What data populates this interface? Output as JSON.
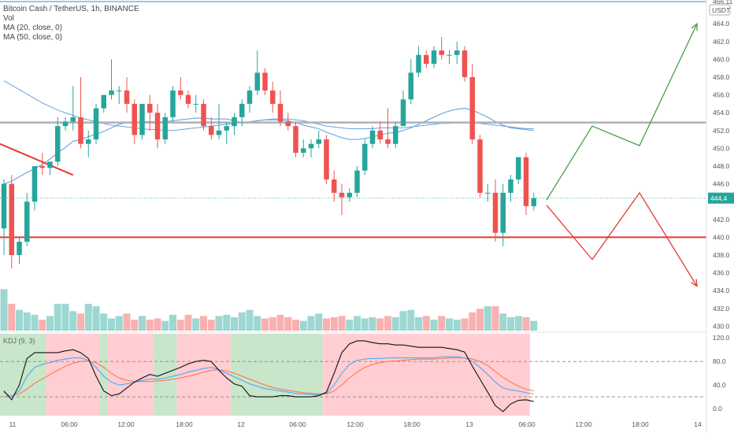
{
  "legend": {
    "symbol": "Bitcoin Cash / TetherUS, 1h, BINANCE",
    "vol": "Vol",
    "ma20": "MA (20, close, 0)",
    "ma50": "MA (50, close, 0)",
    "kdj": "KDJ (9, 3)"
  },
  "price_axis": {
    "currency": "USDT",
    "top_label": "466.11",
    "last_price": "444.4"
  },
  "colors": {
    "up": "#26a69a",
    "down": "#ef5350",
    "ma20": "#5b9bd5",
    "support": "#e53935",
    "resistance": "#b0b0b8",
    "bull_path": "#43a047",
    "bear_path": "#e53935",
    "kdj_bull_bg": "#c8e6c9",
    "kdj_bear_bg": "#ffcdd2"
  },
  "chart_data": {
    "type": "candlestick",
    "title": "Bitcoin Cash / TetherUS, 1h, BINANCE",
    "price_ticks": [
      "464.0",
      "462.0",
      "460.0",
      "458.0",
      "456.0",
      "454.0",
      "452.0",
      "450.0",
      "448.0",
      "446.0",
      "442.0",
      "440.0",
      "438.0",
      "436.0",
      "434.0",
      "432.0",
      "430.0"
    ],
    "kdj_ticks": [
      "120.0",
      "80.0",
      "40.0",
      "0.0"
    ],
    "time_ticks": [
      "11",
      "06:00",
      "12:00",
      "18:00",
      "12",
      "06:00",
      "12:00",
      "18:00",
      "13",
      "06:00",
      "12:00",
      "18:00",
      "14"
    ],
    "ylim": [
      429.5,
      466.5
    ],
    "kdj_ylim": [
      -12,
      127
    ],
    "candles": [
      [
        441.0,
        446.5,
        438.0,
        446.0
      ],
      [
        446.0,
        447.0,
        436.5,
        438.0
      ],
      [
        438.0,
        440.0,
        437.0,
        439.5
      ],
      [
        439.5,
        445.0,
        439.0,
        444.0
      ],
      [
        444.0,
        448.0,
        443.0,
        448.0
      ],
      [
        448.0,
        449.5,
        447.0,
        447.8
      ],
      [
        447.8,
        448.5,
        447.0,
        448.5
      ],
      [
        448.5,
        453.5,
        448.0,
        452.5
      ],
      [
        452.5,
        453.5,
        452.0,
        453.0
      ],
      [
        453.0,
        457.0,
        452.0,
        453.5
      ],
      [
        453.5,
        458.0,
        450.0,
        450.5
      ],
      [
        450.5,
        452.0,
        449.0,
        451.0
      ],
      [
        451.0,
        455.0,
        450.5,
        454.5
      ],
      [
        454.5,
        456.0,
        454.0,
        456.0
      ],
      [
        456.0,
        460.0,
        455.5,
        456.5
      ],
      [
        456.5,
        457.0,
        455.0,
        456.5
      ],
      [
        456.5,
        458.0,
        454.0,
        455.0
      ],
      [
        455.0,
        455.5,
        450.5,
        451.5
      ],
      [
        451.5,
        455.0,
        451.0,
        455.0
      ],
      [
        455.0,
        456.0,
        452.0,
        454.0
      ],
      [
        454.0,
        455.0,
        450.0,
        451.0
      ],
      [
        451.0,
        454.0,
        450.5,
        453.5
      ],
      [
        453.5,
        457.0,
        453.0,
        456.5
      ],
      [
        456.5,
        458.0,
        455.5,
        456.0
      ],
      [
        456.0,
        456.5,
        454.5,
        455.0
      ],
      [
        455.0,
        456.0,
        454.0,
        455.0
      ],
      [
        455.0,
        455.5,
        452.0,
        452.5
      ],
      [
        452.5,
        453.5,
        451.0,
        451.5
      ],
      [
        451.5,
        455.0,
        451.0,
        452.0
      ],
      [
        452.0,
        453.0,
        450.5,
        452.5
      ],
      [
        452.5,
        454.0,
        451.5,
        453.5
      ],
      [
        453.5,
        455.5,
        452.5,
        455.0
      ],
      [
        455.0,
        457.0,
        454.0,
        456.5
      ],
      [
        456.5,
        461.0,
        456.0,
        458.5
      ],
      [
        458.5,
        459.0,
        456.0,
        456.5
      ],
      [
        456.5,
        457.5,
        454.0,
        455.0
      ],
      [
        455.0,
        456.5,
        452.5,
        453.0
      ],
      [
        453.0,
        454.0,
        452.0,
        452.5
      ],
      [
        452.5,
        453.0,
        449.0,
        449.5
      ],
      [
        449.5,
        451.0,
        449.0,
        450.0
      ],
      [
        450.0,
        451.0,
        449.0,
        450.5
      ],
      [
        450.5,
        452.0,
        450.0,
        451.0
      ],
      [
        451.0,
        451.5,
        446.0,
        446.5
      ],
      [
        446.5,
        447.5,
        444.0,
        445.0
      ],
      [
        445.0,
        446.0,
        442.5,
        444.5
      ],
      [
        444.5,
        445.5,
        444.0,
        445.0
      ],
      [
        445.0,
        448.0,
        444.5,
        447.5
      ],
      [
        447.5,
        451.0,
        447.0,
        450.5
      ],
      [
        450.5,
        452.5,
        450.0,
        452.0
      ],
      [
        452.0,
        453.0,
        450.5,
        451.0
      ],
      [
        451.0,
        454.5,
        450.0,
        450.5
      ],
      [
        450.5,
        453.0,
        450.0,
        452.5
      ],
      [
        452.5,
        456.5,
        452.5,
        455.5
      ],
      [
        455.5,
        460.0,
        455.0,
        458.5
      ],
      [
        458.5,
        461.5,
        458.0,
        460.5
      ],
      [
        460.5,
        461.0,
        459.0,
        459.5
      ],
      [
        459.5,
        461.5,
        459.0,
        461.0
      ],
      [
        461.0,
        462.5,
        460.0,
        460.5
      ],
      [
        460.5,
        461.0,
        459.5,
        460.5
      ],
      [
        460.5,
        462.0,
        459.5,
        461.0
      ],
      [
        461.0,
        461.5,
        457.5,
        458.0
      ],
      [
        458.0,
        459.5,
        450.5,
        451.0
      ],
      [
        451.0,
        451.5,
        444.5,
        445.0
      ],
      [
        445.0,
        446.0,
        444.0,
        445.0
      ],
      [
        445.0,
        446.5,
        439.5,
        440.5
      ],
      [
        440.5,
        446.0,
        439.0,
        445.0
      ],
      [
        445.0,
        447.0,
        444.0,
        446.5
      ],
      [
        446.5,
        449.0,
        446.0,
        449.0
      ],
      [
        449.0,
        449.5,
        442.5,
        443.5
      ],
      [
        443.5,
        445.0,
        443.0,
        444.4
      ]
    ],
    "volume": [
      34,
      22,
      17,
      15,
      13,
      9,
      12,
      22,
      22,
      16,
      14,
      22,
      20,
      14,
      10,
      12,
      14,
      9,
      12,
      9,
      10,
      8,
      13,
      9,
      13,
      10,
      12,
      9,
      12,
      13,
      11,
      15,
      17,
      12,
      10,
      11,
      13,
      11,
      9,
      8,
      12,
      14,
      10,
      11,
      12,
      9,
      12,
      10,
      11,
      10,
      12,
      11,
      16,
      17,
      11,
      12,
      9,
      12,
      10,
      9,
      10,
      15,
      18,
      20,
      20,
      14,
      11,
      12,
      11,
      8
    ],
    "ma20": [
      446.0,
      446.3,
      446.8,
      447.3,
      447.7,
      448.2,
      448.8,
      449.5,
      450.1,
      450.8,
      451.0,
      451.3,
      451.6,
      451.9,
      452.3,
      452.7,
      452.9,
      452.9,
      453.0,
      453.0,
      453.0,
      453.0,
      453.1,
      453.2,
      453.3,
      453.4,
      453.4,
      453.3,
      453.3,
      453.3,
      453.1,
      452.9,
      452.9,
      453.1,
      453.2,
      453.2,
      453.2,
      453.1,
      452.9,
      452.6,
      452.4,
      452.2,
      451.8,
      451.5,
      451.2,
      451.0,
      451.0,
      451.1,
      451.3,
      451.5,
      451.7,
      451.8,
      452.0,
      452.3,
      452.7,
      453.1,
      453.5,
      453.9,
      454.2,
      454.4,
      454.5,
      454.3,
      453.9,
      453.5,
      453.0,
      452.6,
      452.3,
      452.2,
      452.1,
      452.0
    ],
    "ma50": [
      457.6,
      457.1,
      456.6,
      456.1,
      455.6,
      455.1,
      454.7,
      454.3,
      454.0,
      453.7,
      453.4,
      453.2,
      453.0,
      452.8,
      452.6,
      452.5,
      452.4,
      452.3,
      452.2,
      452.1,
      452.1,
      452.0,
      452.0,
      452.1,
      452.2,
      452.3,
      452.4,
      452.5,
      452.6,
      452.7,
      452.8,
      452.9,
      453.0,
      453.1,
      453.2,
      453.3,
      453.3,
      453.3,
      453.2,
      453.1,
      452.9,
      452.7,
      452.5,
      452.4,
      452.3,
      452.2,
      452.2,
      452.2,
      452.2,
      452.3,
      452.3,
      452.3,
      452.3,
      452.4,
      452.5,
      452.6,
      452.7,
      452.8,
      452.8,
      452.9,
      452.9,
      452.9,
      452.8,
      452.7,
      452.6,
      452.5,
      452.4,
      452.3,
      452.2,
      452.2
    ],
    "kdj_k": [
      28,
      20,
      30,
      55,
      70,
      75,
      78,
      82,
      84,
      86,
      86,
      82,
      70,
      55,
      45,
      40,
      42,
      45,
      48,
      50,
      50,
      52,
      55,
      58,
      62,
      65,
      68,
      70,
      66,
      60,
      54,
      48,
      42,
      38,
      34,
      32,
      30,
      28,
      26,
      25,
      24,
      24,
      26,
      40,
      60,
      75,
      82,
      84,
      85,
      85,
      86,
      86,
      86,
      86,
      86,
      86,
      86,
      88,
      88,
      88,
      86,
      80,
      70,
      58,
      45,
      35,
      32,
      30,
      27,
      25
    ],
    "kdj_d": [
      20,
      22,
      25,
      33,
      43,
      50,
      58,
      65,
      72,
      77,
      80,
      81,
      78,
      70,
      60,
      52,
      48,
      46,
      46,
      46,
      47,
      48,
      50,
      52,
      55,
      58,
      62,
      65,
      66,
      64,
      60,
      55,
      50,
      45,
      40,
      36,
      33,
      31,
      29,
      27,
      26,
      25,
      25,
      30,
      40,
      52,
      62,
      70,
      75,
      78,
      80,
      81,
      82,
      83,
      84,
      84,
      84,
      85,
      86,
      86,
      86,
      84,
      80,
      73,
      63,
      53,
      45,
      38,
      33,
      30
    ],
    "kdj_j": [
      30,
      15,
      40,
      85,
      95,
      95,
      95,
      95,
      98,
      100,
      95,
      85,
      55,
      30,
      22,
      25,
      35,
      45,
      52,
      58,
      55,
      60,
      65,
      70,
      76,
      80,
      82,
      80,
      65,
      52,
      42,
      38,
      22,
      20,
      20,
      20,
      22,
      22,
      20,
      20,
      20,
      22,
      28,
      60,
      95,
      110,
      115,
      115,
      112,
      110,
      110,
      108,
      108,
      106,
      104,
      104,
      104,
      104,
      102,
      100,
      96,
      72,
      50,
      28,
      5,
      -5,
      8,
      14,
      15,
      12
    ],
    "support_level": 440.0,
    "resistance_level": 452.9,
    "shaded": {
      "bull": [
        [
          0,
          6
        ],
        [
          13,
          14
        ],
        [
          20,
          23
        ],
        [
          30,
          42
        ]
      ],
      "bear": [
        [
          6,
          13
        ],
        [
          14,
          20
        ],
        [
          23,
          30
        ],
        [
          42,
          69
        ]
      ]
    },
    "projection_bull": [
      [
        0,
        444.2
      ],
      [
        1,
        452.5
      ],
      [
        2,
        450.3
      ],
      [
        3,
        464.0
      ]
    ],
    "projection_bear": [
      [
        0,
        443.6
      ],
      [
        1,
        437.5
      ],
      [
        2,
        445.0
      ],
      [
        3,
        434.5
      ]
    ]
  }
}
